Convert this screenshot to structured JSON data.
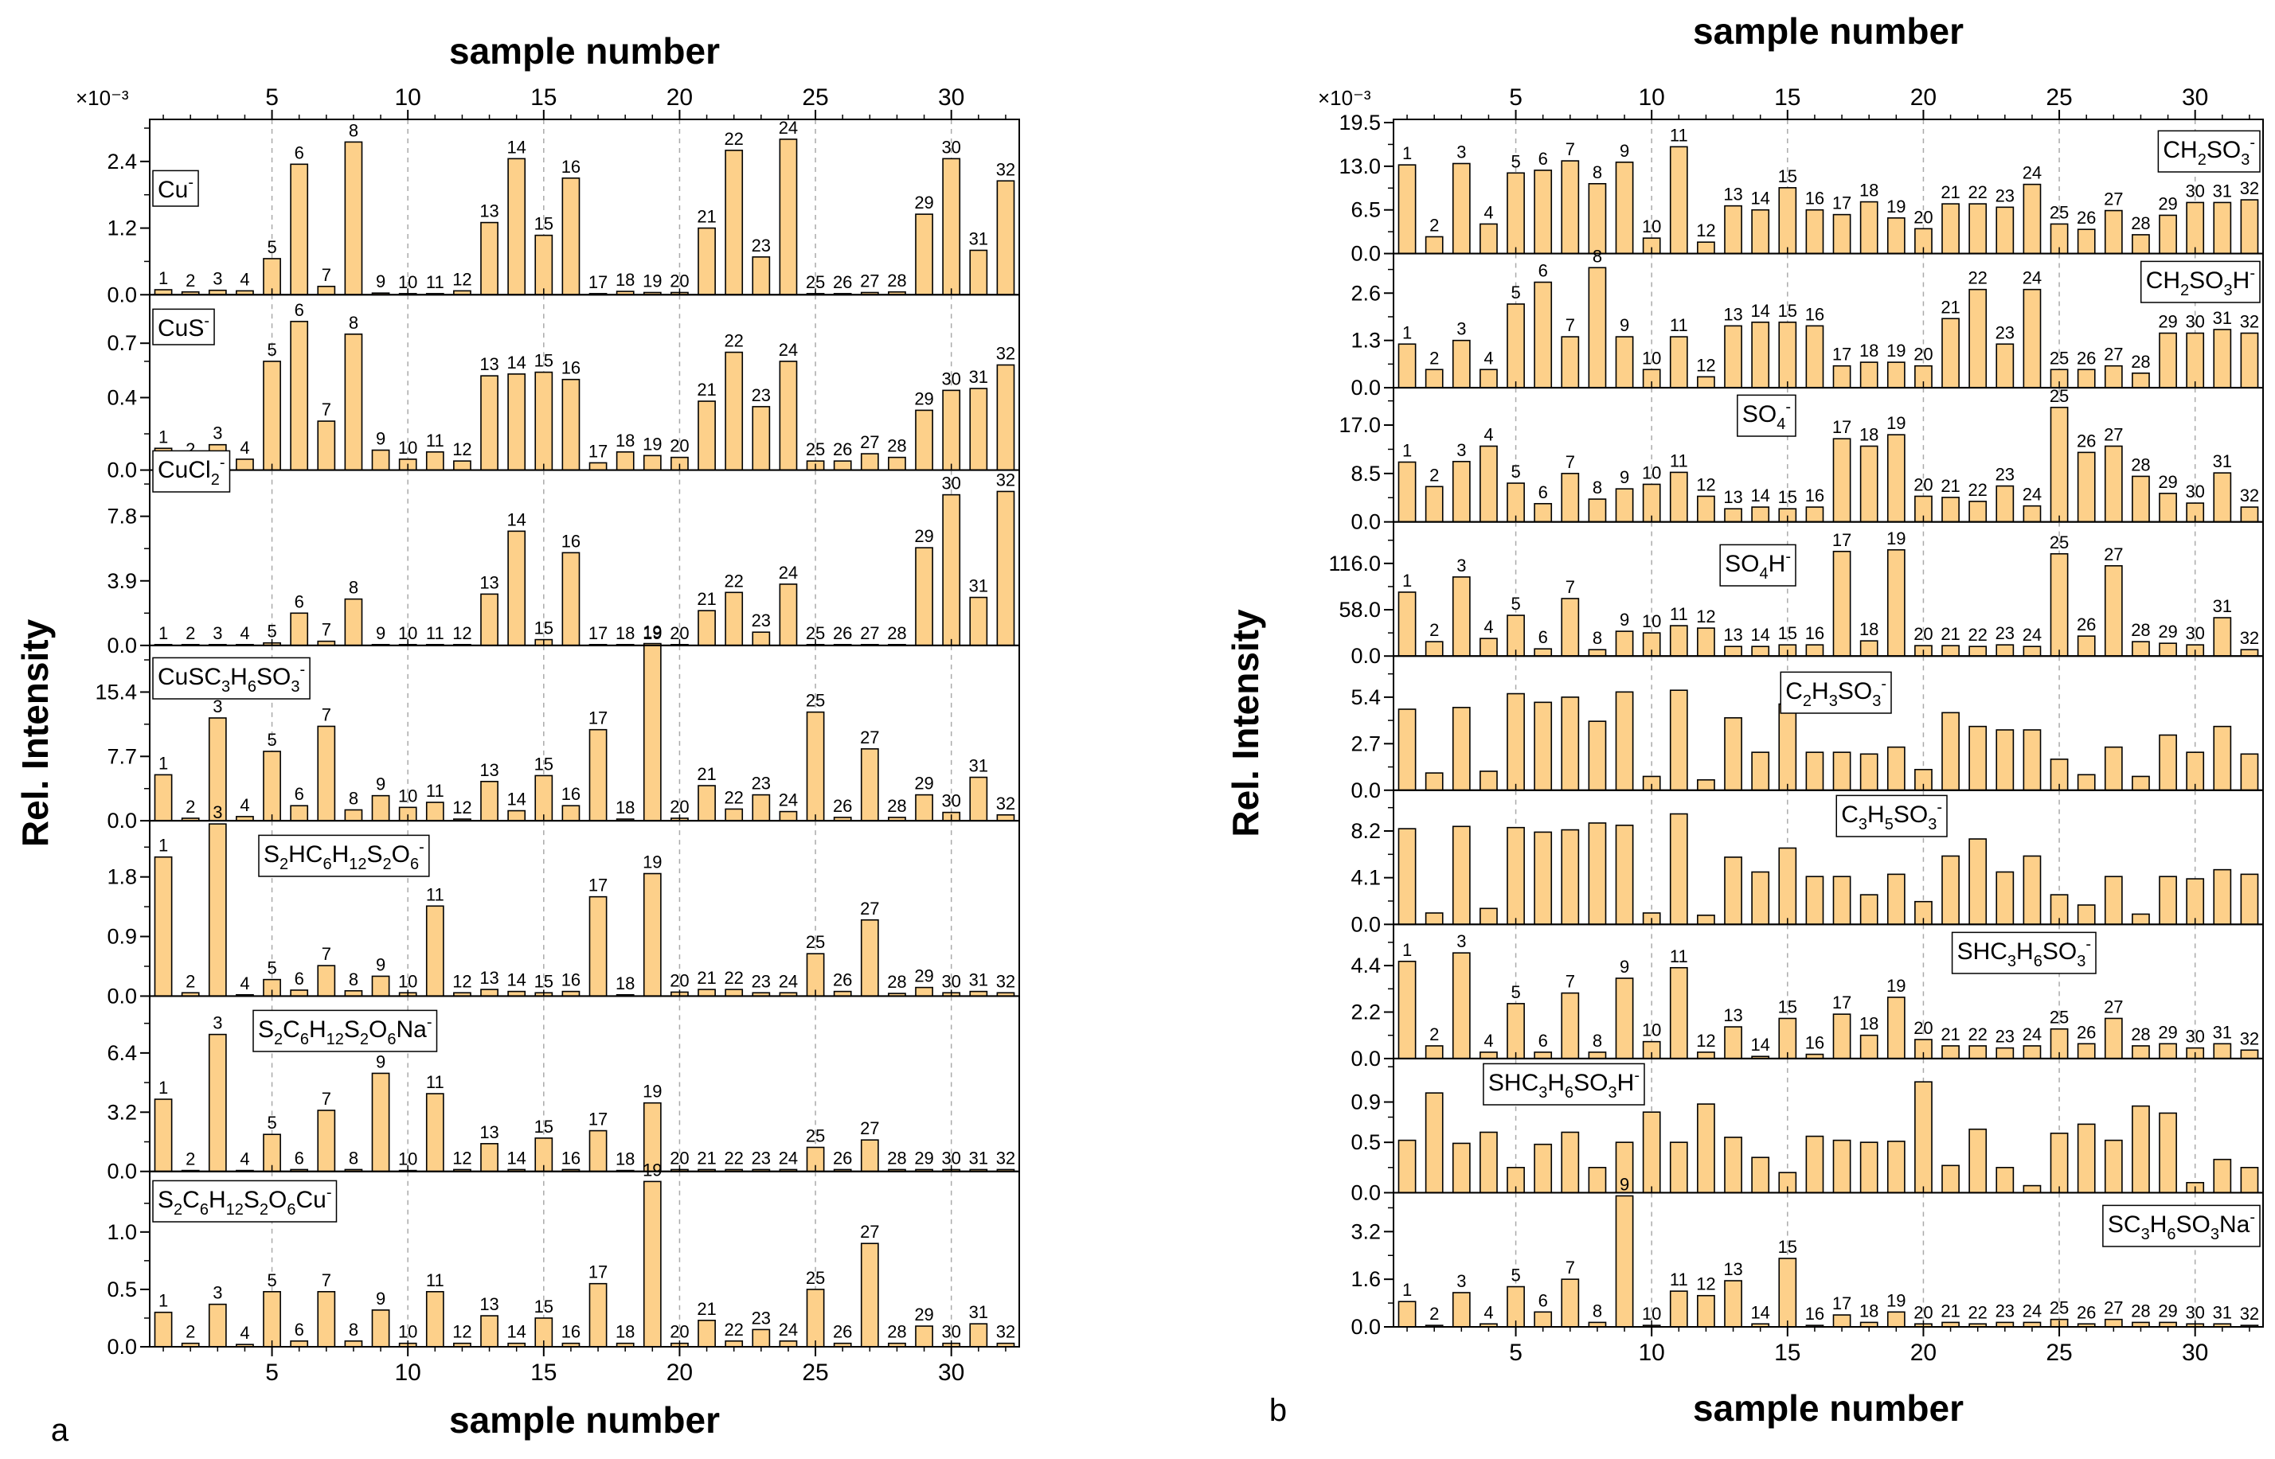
{
  "figure": {
    "panel_a_label": "a",
    "panel_b_label": "b",
    "bar_color": "#fdd08a",
    "bar_stroke": "#000000",
    "grid_color": "#aaaaaa"
  },
  "chart_data": [
    {
      "type": "bar",
      "panel": "a",
      "title": "",
      "xlabel": "sample number",
      "top_xlabel": "sample number",
      "ylabel": "Rel. Intensity",
      "scale_label": "×10⁻³",
      "x": [
        1,
        2,
        3,
        4,
        5,
        6,
        7,
        8,
        9,
        10,
        11,
        12,
        13,
        14,
        15,
        16,
        17,
        18,
        19,
        20,
        21,
        22,
        23,
        24,
        25,
        26,
        27,
        28,
        29,
        30,
        31,
        32
      ],
      "x_ticks": [
        5,
        10,
        15,
        20,
        25,
        30
      ],
      "x_ticklabels": [
        "5",
        "10",
        "15",
        "20",
        "25",
        "30"
      ],
      "xlim": [
        0.5,
        32.5
      ],
      "grid": "vertical dashed at x ticks",
      "series": [
        {
          "name": "Cu<sup>-</sup>",
          "ylim": [
            0,
            3.1
          ],
          "yticks": [
            0.0,
            1.2,
            2.4
          ],
          "yticklabels": [
            "0.0",
            "1.2",
            "2.4"
          ],
          "values": [
            0.09,
            0.05,
            0.08,
            0.07,
            0.65,
            2.35,
            0.15,
            2.75,
            0.03,
            0.02,
            0.02,
            0.07,
            1.3,
            2.45,
            1.07,
            2.1,
            0.02,
            0.06,
            0.04,
            0.04,
            1.2,
            2.6,
            0.68,
            2.8,
            0.02,
            0.02,
            0.04,
            0.05,
            1.45,
            2.45,
            0.8,
            2.05
          ]
        },
        {
          "name": "CuS<sup>-</sup>",
          "ylim": [
            0,
            0.95
          ],
          "yticks": [
            0.0,
            0.4,
            0.7
          ],
          "yticklabels": [
            "0.0",
            "0.4",
            "0.7"
          ],
          "values": [
            0.12,
            0.05,
            0.14,
            0.06,
            0.6,
            0.82,
            0.27,
            0.75,
            0.11,
            0.06,
            0.1,
            0.05,
            0.52,
            0.53,
            0.54,
            0.5,
            0.04,
            0.1,
            0.08,
            0.07,
            0.38,
            0.65,
            0.35,
            0.6,
            0.05,
            0.05,
            0.09,
            0.07,
            0.33,
            0.44,
            0.45,
            0.58
          ]
        },
        {
          "name": "CuCl<sub>2</sub><sup>-</sup>",
          "ylim": [
            0,
            10.4
          ],
          "yticks": [
            0.0,
            3.9,
            7.8
          ],
          "yticklabels": [
            "0.0",
            "3.9",
            "7.8"
          ],
          "values": [
            0.05,
            0.05,
            0.05,
            0.05,
            0.15,
            1.95,
            0.25,
            2.8,
            0.05,
            0.05,
            0.05,
            0.05,
            3.1,
            6.9,
            0.35,
            5.6,
            0.05,
            0.05,
            0.05,
            0.05,
            2.1,
            3.2,
            0.8,
            3.7,
            0.05,
            0.05,
            0.05,
            0.05,
            5.9,
            9.1,
            2.9,
            9.3
          ]
        },
        {
          "name": "CuSC<sub>3</sub>H<sub>6</sub>SO<sub>3</sub><sup>-</sup>",
          "ylim": [
            0,
            20.6
          ],
          "yticks": [
            0.0,
            7.7,
            15.4
          ],
          "yticklabels": [
            "0.0",
            "7.7",
            "15.4"
          ],
          "values": [
            5.5,
            0.3,
            12.3,
            0.5,
            8.3,
            1.8,
            11.3,
            1.3,
            3.0,
            1.6,
            2.2,
            0.2,
            4.7,
            1.2,
            5.4,
            1.8,
            10.9,
            0.2,
            21.2,
            0.3,
            4.2,
            1.4,
            3.1,
            1.1,
            13.0,
            0.4,
            8.6,
            0.4,
            3.1,
            1.0,
            5.2,
            0.7
          ]
        },
        {
          "name": "S<sub>2</sub>HC<sub>6</sub>H<sub>12</sub>S<sub>2</sub>O<sub>6</sub><sup>-</sup>",
          "ylim": [
            0,
            2.6
          ],
          "yticks": [
            0.0,
            0.9,
            1.8
          ],
          "yticklabels": [
            "0.0",
            "0.9",
            "1.8"
          ],
          "values": [
            2.1,
            0.05,
            2.6,
            0.02,
            0.25,
            0.09,
            0.46,
            0.08,
            0.3,
            0.05,
            1.36,
            0.05,
            0.1,
            0.07,
            0.05,
            0.07,
            1.5,
            0.02,
            1.85,
            0.06,
            0.1,
            0.1,
            0.05,
            0.05,
            0.64,
            0.07,
            1.15,
            0.04,
            0.13,
            0.05,
            0.07,
            0.05
          ]
        },
        {
          "name": "S<sub>2</sub>C<sub>6</sub>H<sub>12</sub>S<sub>2</sub>O<sub>6</sub>Na<sup>-</sup>",
          "ylim": [
            0,
            9.3
          ],
          "yticks": [
            0.0,
            3.2,
            6.4
          ],
          "yticklabels": [
            "0.0",
            "3.2",
            "6.4"
          ],
          "values": [
            3.9,
            0.05,
            7.4,
            0.05,
            2.0,
            0.1,
            3.3,
            0.1,
            5.3,
            0.05,
            4.2,
            0.1,
            1.5,
            0.1,
            1.8,
            0.1,
            2.2,
            0.05,
            3.7,
            0.1,
            0.1,
            0.1,
            0.1,
            0.1,
            1.3,
            0.1,
            1.7,
            0.1,
            0.1,
            0.1,
            0.1,
            0.1
          ]
        },
        {
          "name": "S<sub>2</sub>C<sub>6</sub>H<sub>12</sub>S<sub>2</sub>O<sub>6</sub>Cu<sup>-</sup>",
          "ylim": [
            0,
            1.5
          ],
          "yticks": [
            0.0,
            0.5,
            1.0
          ],
          "yticklabels": [
            "0.0",
            "0.5",
            "1.0"
          ],
          "values": [
            0.3,
            0.03,
            0.37,
            0.02,
            0.48,
            0.05,
            0.48,
            0.05,
            0.32,
            0.03,
            0.48,
            0.03,
            0.27,
            0.03,
            0.25,
            0.03,
            0.55,
            0.03,
            1.44,
            0.03,
            0.23,
            0.05,
            0.15,
            0.05,
            0.5,
            0.03,
            0.9,
            0.03,
            0.18,
            0.03,
            0.2,
            0.03
          ]
        }
      ]
    },
    {
      "type": "bar",
      "panel": "b",
      "title": "",
      "xlabel": "sample number",
      "top_xlabel": "sample number",
      "ylabel": "Rel. Intensity",
      "scale_label": "×10⁻³",
      "x": [
        1,
        2,
        3,
        4,
        5,
        6,
        7,
        8,
        9,
        10,
        11,
        12,
        13,
        14,
        15,
        16,
        17,
        18,
        19,
        20,
        21,
        22,
        23,
        24,
        25,
        26,
        27,
        28,
        29,
        30,
        31,
        32
      ],
      "x_ticks": [
        5,
        10,
        15,
        20,
        25,
        30
      ],
      "x_ticklabels": [
        "5",
        "10",
        "15",
        "20",
        "25",
        "30"
      ],
      "xlim": [
        0.5,
        32.5
      ],
      "grid": "vertical dashed at x ticks",
      "series": [
        {
          "name": "CH<sub>2</sub>SO<sub>3</sub><sup>-</sup>",
          "ylim": [
            0,
            19.5
          ],
          "yticks": [
            0.0,
            6.5,
            13.0,
            19.5
          ],
          "yticklabels": [
            "0.0",
            "6.5",
            "13.0",
            "19.5"
          ],
          "numbered": true,
          "values": [
            13.2,
            2.5,
            13.4,
            4.4,
            12.0,
            12.4,
            13.8,
            10.4,
            13.6,
            2.3,
            15.9,
            1.7,
            7.1,
            6.5,
            9.8,
            6.5,
            5.8,
            7.7,
            5.3,
            3.7,
            7.4,
            7.4,
            6.9,
            10.3,
            4.4,
            3.6,
            6.4,
            2.8,
            5.7,
            7.6,
            7.6,
            8.0
          ]
        },
        {
          "name": "CH<sub>2</sub>SO<sub>3</sub>H<sup>-</sup>",
          "ylim": [
            0,
            3.6
          ],
          "yticks": [
            0.0,
            1.3,
            2.6
          ],
          "yticklabels": [
            "0.0",
            "1.3",
            "2.6"
          ],
          "numbered": true,
          "values": [
            1.2,
            0.5,
            1.3,
            0.5,
            2.3,
            2.9,
            1.4,
            3.3,
            1.4,
            0.5,
            1.4,
            0.3,
            1.7,
            1.8,
            1.8,
            1.7,
            0.6,
            0.7,
            0.7,
            0.6,
            1.9,
            2.7,
            1.2,
            2.7,
            0.5,
            0.5,
            0.6,
            0.4,
            1.5,
            1.5,
            1.6,
            1.5
          ]
        },
        {
          "name": "SO<sub>4</sub><sup>-</sup>",
          "ylim": [
            0,
            23.0
          ],
          "yticks": [
            0.0,
            8.5,
            17.0
          ],
          "yticklabels": [
            "0.0",
            "8.5",
            "17.0"
          ],
          "numbered": true,
          "values": [
            10.5,
            6.2,
            10.6,
            13.3,
            6.8,
            3.2,
            8.5,
            4.0,
            5.8,
            6.6,
            8.7,
            4.5,
            2.3,
            2.6,
            2.3,
            2.6,
            14.6,
            13.3,
            15.3,
            4.5,
            4.3,
            3.6,
            6.3,
            2.8,
            20.1,
            12.2,
            13.3,
            8.0,
            5.0,
            3.3,
            8.6,
            2.6
          ]
        },
        {
          "name": "SO<sub>4</sub>H<sup>-</sup>",
          "ylim": [
            0,
            164
          ],
          "yticks": [
            0.0,
            58.0,
            116.0
          ],
          "yticklabels": [
            "0.0",
            "58.0",
            "116.0"
          ],
          "numbered": true,
          "values": [
            80,
            18,
            99,
            22,
            51,
            9,
            72,
            8,
            31,
            29,
            38,
            35,
            12,
            12,
            14,
            14,
            131,
            19,
            133,
            13,
            13,
            12,
            14,
            12,
            128,
            25,
            113,
            18,
            16,
            14,
            48,
            8
          ]
        },
        {
          "name": "C<sub>2</sub>H<sub>3</sub>SO<sub>3</sub><sup>-</sup>",
          "ylim": [
            0,
            7.6
          ],
          "yticks": [
            0.0,
            2.7,
            5.4
          ],
          "yticklabels": [
            "0.0",
            "2.7",
            "5.4"
          ],
          "numbered": false,
          "values": [
            4.7,
            1.0,
            4.8,
            1.1,
            5.6,
            5.1,
            5.4,
            4.0,
            5.7,
            0.8,
            5.8,
            0.6,
            4.2,
            2.2,
            5.0,
            2.2,
            2.2,
            2.1,
            2.5,
            1.2,
            4.5,
            3.7,
            3.5,
            3.5,
            1.8,
            0.9,
            2.5,
            0.8,
            3.2,
            2.2,
            3.7,
            2.1
          ]
        },
        {
          "name": "C<sub>3</sub>H<sub>5</sub>SO<sub>3</sub><sup>-</sup>",
          "ylim": [
            0,
            11.5
          ],
          "yticks": [
            0.0,
            4.1,
            8.2
          ],
          "yticklabels": [
            "0.0",
            "4.1",
            "8.2"
          ],
          "numbered": false,
          "values": [
            8.4,
            1.0,
            8.6,
            1.4,
            8.5,
            8.1,
            8.3,
            8.9,
            8.7,
            1.0,
            9.7,
            0.8,
            5.9,
            4.6,
            6.7,
            4.2,
            4.2,
            2.6,
            4.4,
            2.0,
            6.0,
            7.5,
            4.6,
            6.0,
            2.6,
            1.7,
            4.2,
            0.9,
            4.2,
            4.0,
            4.8,
            4.4
          ]
        },
        {
          "name": "SHC<sub>3</sub>H<sub>6</sub>SO<sub>3</sub><sup>-</sup>",
          "ylim": [
            0,
            6.2
          ],
          "yticks": [
            0.0,
            2.2,
            4.4
          ],
          "yticklabels": [
            "0.0",
            "2.2",
            "4.4"
          ],
          "numbered": true,
          "values": [
            4.6,
            0.6,
            5.0,
            0.3,
            2.6,
            0.3,
            3.1,
            0.3,
            3.8,
            0.8,
            4.3,
            0.3,
            1.5,
            0.1,
            1.9,
            0.2,
            2.1,
            1.1,
            2.9,
            0.9,
            0.6,
            0.6,
            0.5,
            0.6,
            1.4,
            0.7,
            1.9,
            0.6,
            0.7,
            0.5,
            0.7,
            0.4
          ]
        },
        {
          "name": "SHC<sub>3</sub>H<sub>6</sub>SO<sub>3</sub>H<sup>-</sup>",
          "ylim": [
            0,
            1.3
          ],
          "yticks": [
            0.0,
            0.5,
            0.9
          ],
          "yticklabels": [
            "0.0",
            "0.5",
            "0.9"
          ],
          "numbered": false,
          "values": [
            0.52,
            0.99,
            0.49,
            0.6,
            0.25,
            0.48,
            0.6,
            0.25,
            0.5,
            0.8,
            0.5,
            0.88,
            0.55,
            0.35,
            0.2,
            0.56,
            0.52,
            0.5,
            0.51,
            1.1,
            0.27,
            0.63,
            0.25,
            0.07,
            0.59,
            0.68,
            0.52,
            0.86,
            0.79,
            0.1,
            0.33,
            0.25
          ]
        },
        {
          "name": "SC<sub>3</sub>H<sub>6</sub>SO<sub>3</sub>Na<sup>-</sup>",
          "ylim": [
            0,
            4.4
          ],
          "yticks": [
            0.0,
            1.6,
            3.2
          ],
          "yticklabels": [
            "0.0",
            "1.6",
            "3.2"
          ],
          "numbered": true,
          "values": [
            0.85,
            0.05,
            1.15,
            0.1,
            1.35,
            0.5,
            1.6,
            0.15,
            4.4,
            0.05,
            1.2,
            1.05,
            1.55,
            0.1,
            2.3,
            0.05,
            0.4,
            0.15,
            0.5,
            0.1,
            0.15,
            0.1,
            0.15,
            0.15,
            0.25,
            0.1,
            0.25,
            0.15,
            0.15,
            0.1,
            0.1,
            0.05
          ]
        }
      ]
    }
  ]
}
